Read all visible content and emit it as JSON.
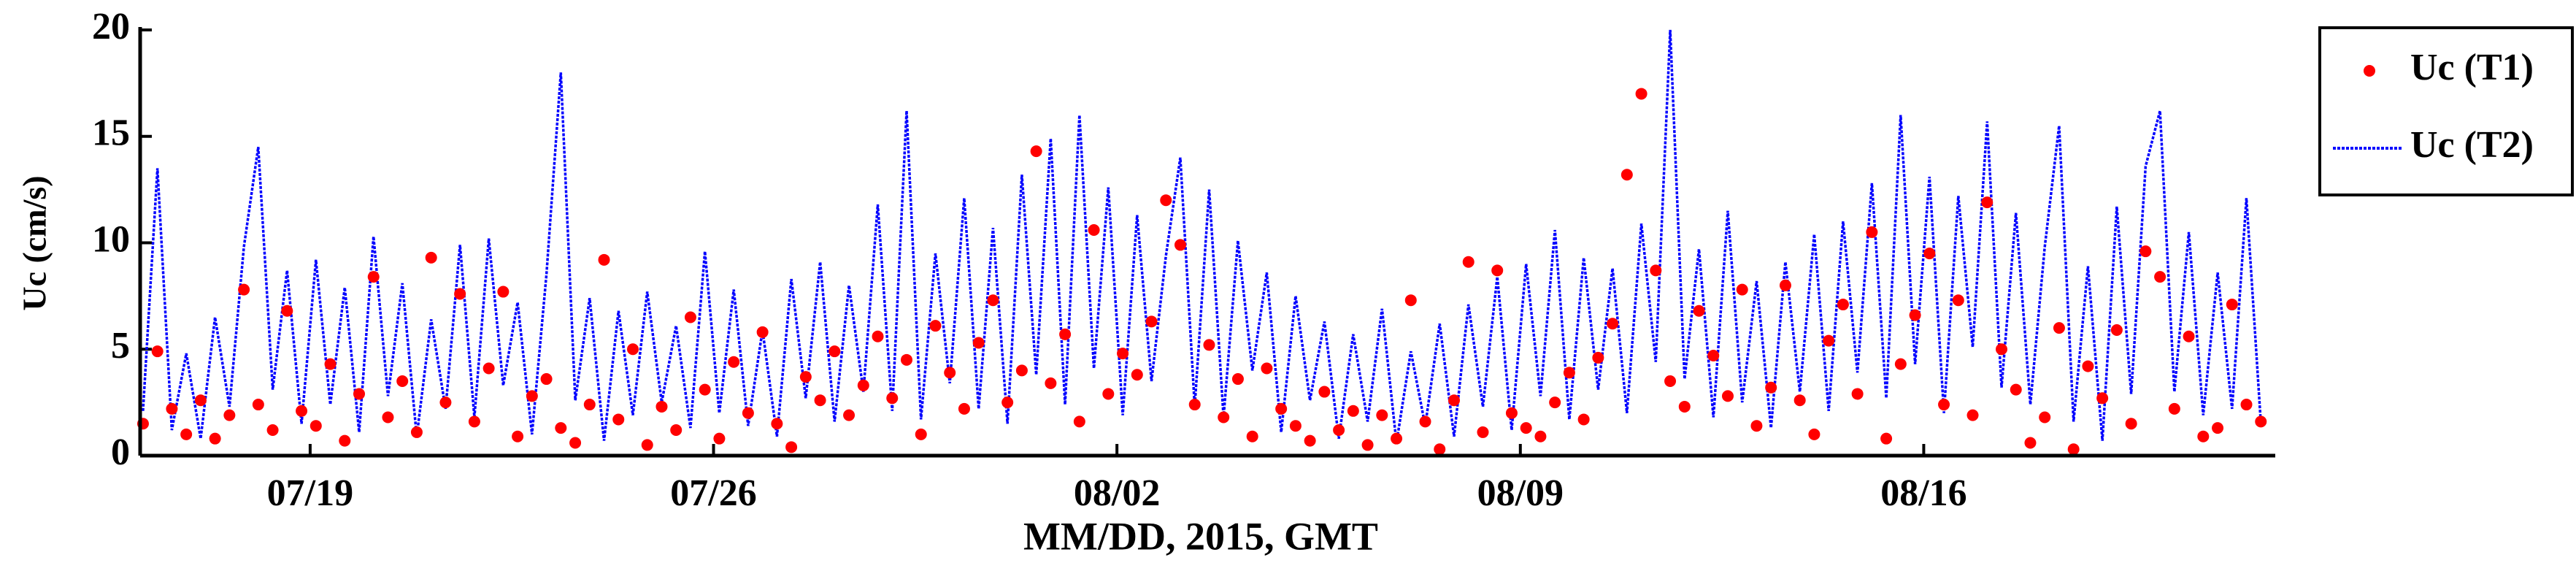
{
  "chart_data": {
    "type": "line",
    "xlabel": "MM/DD, 2015, GMT",
    "ylabel": "Uc (cm/s)",
    "xlim": [
      16.05,
      53.1
    ],
    "ylim": [
      0,
      20
    ],
    "xticks": [
      {
        "value": 19,
        "label": "07/19"
      },
      {
        "value": 26,
        "label": "07/26"
      },
      {
        "value": 33,
        "label": "08/02"
      },
      {
        "value": 40,
        "label": "08/09"
      },
      {
        "value": 47,
        "label": "08/16"
      }
    ],
    "yticks": [
      0,
      5,
      10,
      15,
      20
    ],
    "legend": "outside-right",
    "x": [
      16.1,
      16.35,
      16.6,
      16.85,
      17.1,
      17.35,
      17.6,
      17.85,
      18.1,
      18.35,
      18.6,
      18.85,
      19.1,
      19.35,
      19.6,
      19.85,
      20.1,
      20.35,
      20.6,
      20.85,
      21.1,
      21.35,
      21.6,
      21.85,
      22.1,
      22.35,
      22.6,
      22.85,
      23.1,
      23.35,
      23.6,
      23.85,
      24.1,
      24.35,
      24.6,
      24.85,
      25.1,
      25.35,
      25.6,
      25.85,
      26.1,
      26.35,
      26.6,
      26.85,
      27.1,
      27.35,
      27.6,
      27.85,
      28.1,
      28.35,
      28.6,
      28.85,
      29.1,
      29.35,
      29.6,
      29.85,
      30.1,
      30.35,
      30.6,
      30.85,
      31.1,
      31.35,
      31.6,
      31.85,
      32.1,
      32.35,
      32.6,
      32.85,
      33.1,
      33.35,
      33.6,
      33.85,
      34.1,
      34.35,
      34.6,
      34.85,
      35.1,
      35.35,
      35.6,
      35.85,
      36.1,
      36.35,
      36.6,
      36.85,
      37.1,
      37.35,
      37.6,
      37.85,
      38.1,
      38.35,
      38.6,
      38.85,
      39.1,
      39.35,
      39.6,
      39.85,
      40.1,
      40.35,
      40.6,
      40.85,
      41.1,
      41.35,
      41.6,
      41.85,
      42.1,
      42.35,
      42.6,
      42.85,
      43.1,
      43.35,
      43.6,
      43.85,
      44.1,
      44.35,
      44.6,
      44.85,
      45.1,
      45.35,
      45.6,
      45.85,
      46.1,
      46.35,
      46.6,
      46.85,
      47.1,
      47.35,
      47.6,
      47.85,
      48.1,
      48.35,
      48.6,
      48.85,
      49.1,
      49.35,
      49.6,
      49.85,
      50.1,
      50.35,
      50.6,
      50.85,
      51.1,
      51.35,
      51.6,
      51.85,
      52.1,
      52.35,
      52.6,
      52.85
    ],
    "series": [
      {
        "name": "Uc (T1)",
        "mode": "markers",
        "color": "#ff0000",
        "values": [
          1.5,
          4.9,
          2.2,
          1.0,
          2.6,
          0.8,
          1.9,
          7.8,
          2.4,
          1.2,
          6.8,
          2.1,
          1.4,
          4.3,
          0.7,
          2.9,
          8.4,
          1.8,
          3.5,
          1.1,
          9.3,
          2.5,
          7.6,
          1.6,
          4.1,
          7.7,
          0.9,
          2.8,
          3.6,
          1.3,
          0.6,
          2.4,
          9.2,
          1.7,
          5.0,
          0.5,
          2.3,
          1.2,
          6.5,
          3.1,
          0.8,
          4.4,
          2.0,
          5.8,
          1.5,
          0.4,
          3.7,
          2.6,
          4.9,
          1.9,
          3.3,
          5.6,
          2.7,
          4.5,
          1.0,
          6.1,
          3.9,
          2.2,
          5.3,
          7.3,
          2.5,
          4.0,
          14.3,
          3.4,
          5.7,
          1.6,
          10.6,
          2.9,
          4.8,
          3.8,
          6.3,
          12.0,
          9.9,
          2.4,
          5.2,
          1.8,
          3.6,
          0.9,
          4.1,
          2.2,
          1.4,
          0.7,
          3.0,
          1.2,
          2.1,
          0.5,
          1.9,
          0.8,
          7.3,
          1.6,
          0.3,
          2.6,
          9.1,
          1.1,
          8.7,
          2.0,
          1.3,
          0.9,
          2.5,
          3.9,
          1.7,
          4.6,
          6.2,
          13.2,
          17.0,
          8.7,
          3.5,
          2.3,
          6.8,
          4.7,
          2.8,
          7.8,
          1.4,
          3.2,
          8.0,
          2.6,
          1.0,
          5.4,
          7.1,
          2.9,
          10.5,
          0.8,
          4.3,
          6.6,
          9.5,
          2.4,
          7.3,
          1.9,
          11.9,
          5.0,
          3.1,
          0.6,
          1.8,
          6.0,
          0.3,
          4.2,
          2.7,
          5.9,
          1.5,
          9.6,
          8.4,
          2.2,
          5.6,
          0.9,
          1.3,
          7.1,
          2.4,
          1.6
        ]
      },
      {
        "name": "Uc (T2)",
        "mode": "lines",
        "color": "#0000ff",
        "values": [
          2.1,
          13.5,
          1.2,
          4.8,
          0.8,
          6.5,
          2.3,
          9.8,
          14.5,
          3.1,
          8.7,
          1.5,
          9.2,
          2.4,
          7.9,
          1.1,
          10.3,
          2.8,
          8.1,
          0.9,
          6.4,
          2.2,
          9.9,
          1.8,
          10.2,
          3.3,
          7.2,
          1.0,
          8.5,
          18.0,
          2.6,
          7.4,
          0.7,
          6.8,
          1.9,
          7.7,
          2.5,
          6.1,
          1.3,
          9.6,
          2.0,
          7.8,
          1.4,
          5.9,
          0.9,
          8.3,
          2.7,
          9.1,
          1.6,
          8.0,
          3.0,
          11.8,
          2.1,
          16.2,
          1.7,
          9.5,
          3.4,
          12.1,
          2.2,
          10.7,
          1.5,
          13.2,
          3.8,
          14.9,
          2.4,
          16.0,
          4.1,
          12.6,
          1.9,
          11.3,
          3.5,
          9.4,
          14.0,
          2.3,
          12.5,
          1.8,
          10.1,
          4.0,
          8.6,
          1.1,
          7.5,
          2.6,
          6.3,
          0.8,
          5.7,
          1.6,
          6.9,
          0.6,
          4.9,
          1.4,
          6.2,
          0.9,
          7.1,
          2.3,
          8.4,
          1.2,
          9.0,
          2.8,
          10.6,
          1.7,
          9.3,
          3.1,
          8.8,
          2.0,
          10.9,
          4.4,
          20.0,
          3.6,
          9.7,
          1.8,
          11.5,
          2.5,
          8.2,
          1.3,
          9.1,
          3.0,
          10.4,
          2.1,
          11.0,
          3.9,
          12.8,
          2.7,
          16.0,
          4.3,
          13.1,
          2.0,
          12.2,
          5.1,
          15.7,
          3.2,
          11.4,
          2.4,
          9.8,
          15.5,
          1.6,
          8.9,
          0.7,
          11.7,
          2.9,
          13.6,
          16.2,
          3.0,
          10.5,
          1.9,
          8.6,
          2.2,
          12.1,
          1.5
        ]
      }
    ]
  }
}
